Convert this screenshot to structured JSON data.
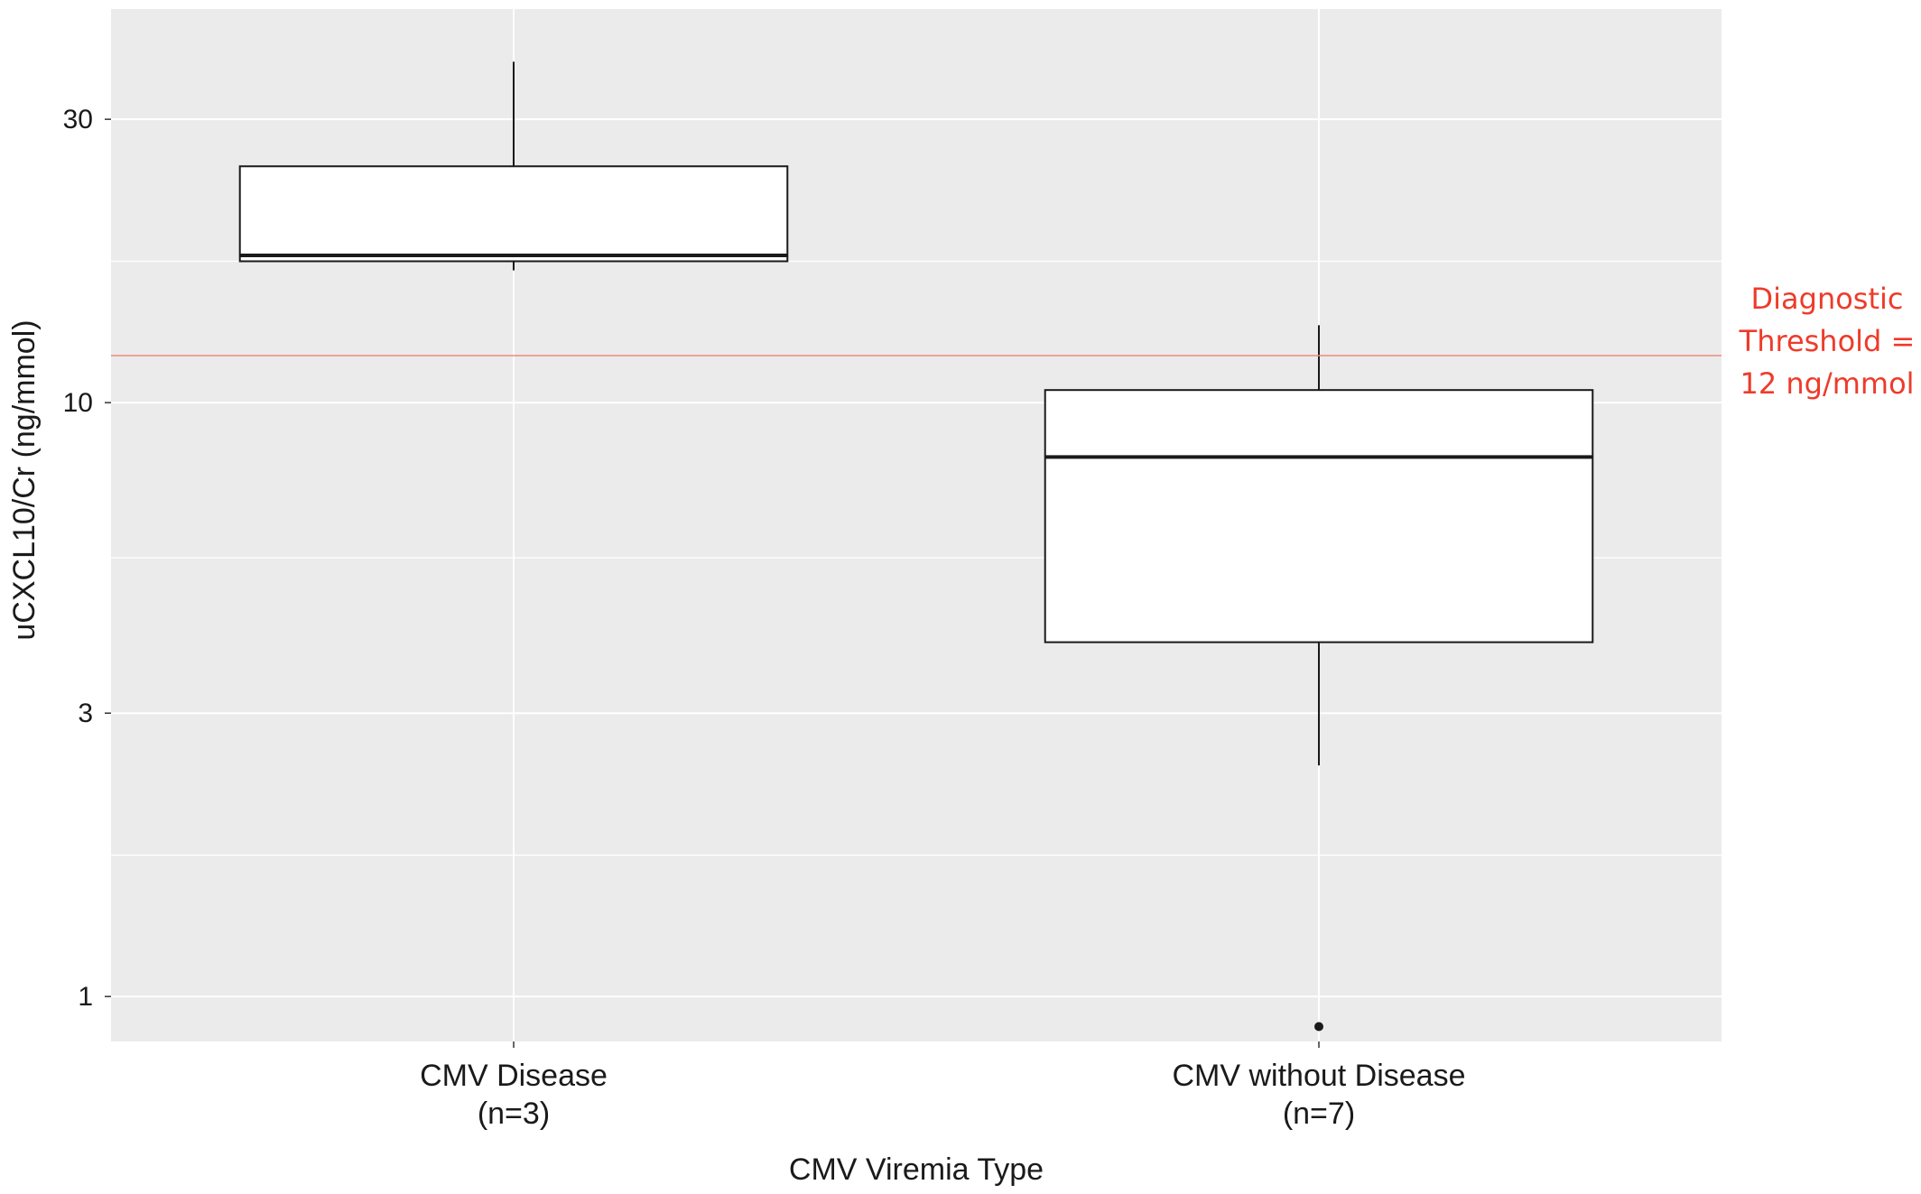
{
  "chart_data": {
    "type": "boxplot",
    "title": "",
    "xlabel": "CMV Viremia Type",
    "ylabel": "uCXCL10/Cr (ng/mmol)",
    "y_scale": "log10",
    "ylim": [
      0.84,
      46
    ],
    "y_ticks": [
      1,
      3,
      10,
      30
    ],
    "y_tick_labels": [
      "1",
      "3",
      "10",
      "30"
    ],
    "y_minor_gridlines": [
      1.73,
      5.48,
      17.3
    ],
    "grid": true,
    "background": "#ebebeb",
    "categories": [
      {
        "line1": "CMV Disease",
        "line2": "(n=3)"
      },
      {
        "line1": "CMV without Disease",
        "line2": "(n=7)"
      }
    ],
    "boxes": [
      {
        "whisker_low": 16.7,
        "q1": 17.3,
        "median": 17.7,
        "q3": 25.0,
        "whisker_high": 37.5,
        "outliers": []
      },
      {
        "whisker_low": 2.45,
        "q1": 3.95,
        "median": 8.1,
        "q3": 10.5,
        "whisker_high": 13.5,
        "outliers": [
          0.89
        ]
      }
    ],
    "threshold": {
      "value": 12,
      "color": "#f08a80",
      "label_lines": [
        "Diagnostic",
        "Threshold =",
        "12 ng/mmol"
      ],
      "label_color": "#ee3b2a"
    }
  }
}
